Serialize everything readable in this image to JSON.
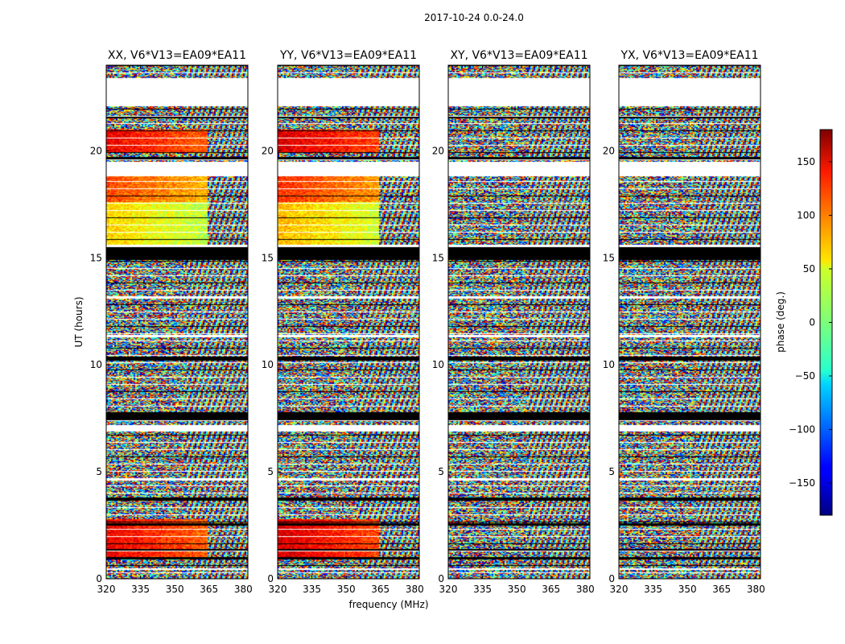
{
  "figure_title": "2017-10-24 0.0-24.0",
  "colors": {
    "flag_black": "#000000",
    "axis": "#000000",
    "background": "#ffffff",
    "colormap": "jet"
  },
  "chart_data": {
    "type": "heatmap",
    "shared_xlabel": "frequency (MHz)",
    "shared_ylabel": "UT (hours)",
    "xlim": [
      320,
      382
    ],
    "ylim": [
      0,
      24
    ],
    "xticks": [
      320,
      335,
      350,
      365,
      380
    ],
    "yticks": [
      0,
      5,
      10,
      15,
      20
    ],
    "panels": [
      {
        "title": "XX, V6*V13=EA09*EA11",
        "pol": "XX",
        "coherent_hours": [
          [
            15.6,
            18.8
          ],
          [
            19.9,
            21.0
          ],
          [
            0.9,
            2.8
          ],
          [
            7.2,
            7.4
          ]
        ],
        "coherent_color_bands": [
          [
            15.6,
            17.6,
            60
          ],
          [
            17.6,
            18.8,
            110
          ],
          [
            19.9,
            21.0,
            140
          ],
          [
            0.9,
            2.8,
            140
          ]
        ],
        "coherent_freq_max": 364
      },
      {
        "title": "YY, V6*V13=EA09*EA11",
        "pol": "YY",
        "coherent_hours": [
          [
            15.6,
            18.8
          ],
          [
            19.9,
            21.0
          ],
          [
            0.9,
            2.8
          ],
          [
            7.2,
            7.4
          ]
        ],
        "coherent_color_bands": [
          [
            15.6,
            17.6,
            70
          ],
          [
            17.6,
            18.8,
            120
          ],
          [
            19.9,
            21.0,
            150
          ],
          [
            0.9,
            2.8,
            150
          ]
        ],
        "coherent_freq_max": 364
      },
      {
        "title": "XY, V6*V13=EA09*EA11",
        "pol": "XY",
        "coherent_hours": [],
        "coherent_color_bands": [],
        "coherent_freq_max": 320
      },
      {
        "title": "YX, V6*V13=EA09*EA11",
        "pol": "YX",
        "coherent_hours": [],
        "coherent_color_bands": [],
        "coherent_freq_max": 320
      }
    ],
    "flagged_black_hours": [
      [
        14.9,
        15.5
      ],
      [
        7.4,
        7.8
      ],
      [
        10.2,
        10.4
      ],
      [
        3.7,
        3.8
      ],
      [
        2.5,
        2.6
      ],
      [
        1.3,
        1.4
      ],
      [
        0.9,
        1.0
      ],
      [
        19.6,
        19.7
      ],
      [
        21.5,
        21.6
      ]
    ],
    "blank_hours": [
      [
        22.1,
        23.4
      ],
      [
        18.8,
        19.5
      ],
      [
        15.5,
        15.6
      ],
      [
        6.9,
        7.2
      ],
      [
        4.6,
        4.7
      ],
      [
        0.4,
        0.5
      ],
      [
        13.1,
        13.2
      ],
      [
        11.3,
        11.4
      ]
    ],
    "colorbar": {
      "label": "phase (deg.)",
      "range": [
        -180,
        180
      ],
      "ticks": [
        150,
        100,
        50,
        0,
        -50,
        -100,
        -150
      ],
      "tick_labels": [
        "150",
        "100",
        "50",
        "0",
        "−50",
        "−100",
        "−150"
      ]
    }
  }
}
